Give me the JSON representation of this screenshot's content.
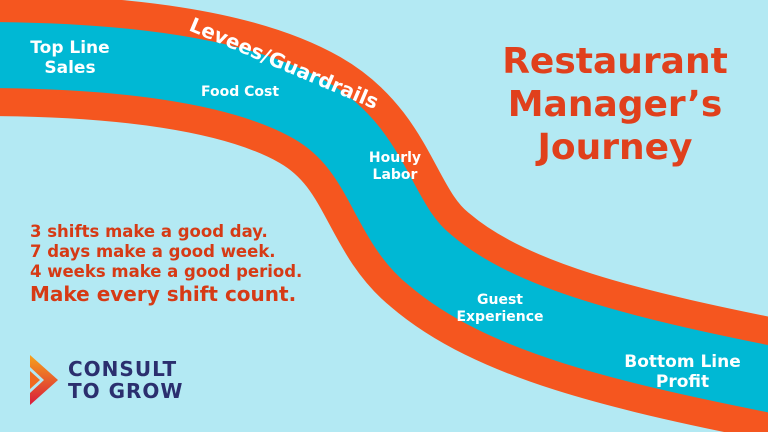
{
  "title": [
    "Restaurant",
    "Manager’s",
    "Journey"
  ],
  "river_labels": {
    "top_line_sales": [
      "Top Line",
      "Sales"
    ],
    "food_cost": "Food Cost",
    "hourly_labor": [
      "Hourly",
      "Labor"
    ],
    "guest_experience": [
      "Guest",
      "Experience"
    ],
    "bottom_line_profit": [
      "Bottom Line",
      "Profit"
    ]
  },
  "levees_label": "Levees/Guardrails",
  "slogan": [
    "3 shifts make a good day.",
    "7 days make a good week.",
    "4 weeks make a good period.",
    "Make every shift count."
  ],
  "logo": {
    "line1": "CONSULT",
    "line2": "TO GROW",
    "icon": "play-arrow-icon"
  },
  "colors": {
    "background": "#b3e9f3",
    "levee": "#f5561f",
    "river": "#00b8d4",
    "title": "#e0401c",
    "logo_text": "#2b2f6e"
  }
}
